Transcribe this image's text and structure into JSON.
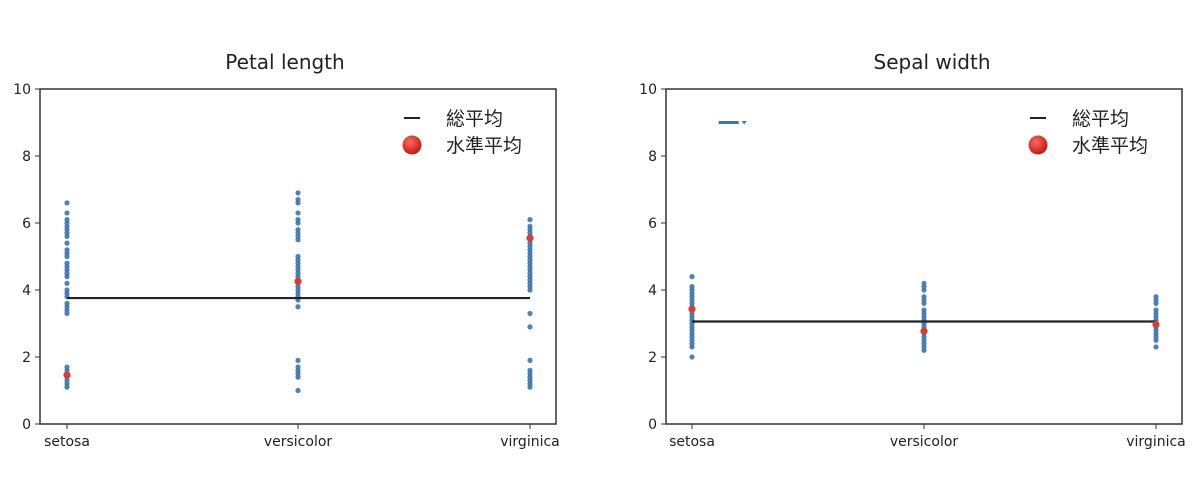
{
  "chart_data": [
    {
      "type": "scatter",
      "title": "Petal length",
      "xlabel": "",
      "ylabel": "",
      "ylim": [
        0,
        10
      ],
      "yticks": [
        0,
        2,
        4,
        6,
        8,
        10
      ],
      "categories": [
        "setosa",
        "versicolor",
        "virginica"
      ],
      "grid": false,
      "legend": {
        "position": "upper right",
        "entries": [
          "総平均",
          "水準平均"
        ]
      },
      "grand_mean": 3.76,
      "level_means": [
        1.46,
        4.26,
        5.55
      ],
      "points": [
        [
          1.1,
          1.2,
          1.3,
          1.4,
          1.5,
          1.6,
          1.7,
          3.3,
          3.4,
          3.5,
          3.6,
          3.8,
          3.9,
          4.0,
          4.2,
          4.4,
          4.5,
          4.6,
          4.7,
          4.8,
          5.0,
          5.1,
          5.2,
          5.4,
          5.6,
          5.7,
          5.8,
          5.9,
          6.0,
          6.1,
          6.3,
          6.6
        ],
        [
          1.0,
          1.4,
          1.5,
          1.6,
          1.7,
          1.9,
          3.5,
          3.7,
          3.8,
          3.9,
          4.0,
          4.1,
          4.2,
          4.3,
          4.4,
          4.5,
          4.6,
          4.7,
          4.8,
          4.9,
          5.0,
          5.5,
          5.6,
          5.7,
          5.8,
          6.0,
          6.1,
          6.3,
          6.6,
          6.7,
          6.9
        ],
        [
          1.1,
          1.2,
          1.3,
          1.4,
          1.5,
          1.6,
          1.9,
          2.9,
          3.3,
          4.0,
          4.1,
          4.2,
          4.3,
          4.4,
          4.5,
          4.6,
          4.7,
          4.8,
          4.9,
          5.0,
          5.1,
          5.2,
          5.3,
          5.4,
          5.5,
          5.6,
          5.7,
          5.8,
          5.9,
          6.1
        ]
      ]
    },
    {
      "type": "scatter",
      "title": "Sepal width",
      "xlabel": "",
      "ylabel": "",
      "ylim": [
        0,
        10
      ],
      "yticks": [
        0,
        2,
        4,
        6,
        8,
        10
      ],
      "categories": [
        "setosa",
        "versicolor",
        "virginica"
      ],
      "grid": false,
      "legend": {
        "position": "upper right",
        "entries": [
          "総平均",
          "水準平均"
        ]
      },
      "grand_mean": 3.06,
      "level_means": [
        3.43,
        2.77,
        2.97
      ],
      "annotation": {
        "type": "stray-marks",
        "x_frac": 0.135,
        "y": 9.0,
        "note": "small blue dashed artifact near top-left"
      },
      "points": [
        [
          2.0,
          2.3,
          2.4,
          2.5,
          2.6,
          2.7,
          2.8,
          2.9,
          3.0,
          3.1,
          3.2,
          3.3,
          3.4,
          3.5,
          3.6,
          3.7,
          3.8,
          3.9,
          4.0,
          4.1,
          4.4
        ],
        [
          2.2,
          2.3,
          2.4,
          2.5,
          2.6,
          2.7,
          2.8,
          2.9,
          3.0,
          3.1,
          3.2,
          3.3,
          3.4,
          3.6,
          3.7,
          3.8,
          4.0,
          4.1,
          4.2
        ],
        [
          2.3,
          2.5,
          2.6,
          2.7,
          2.8,
          2.9,
          3.0,
          3.1,
          3.2,
          3.3,
          3.4,
          3.6,
          3.7,
          3.8
        ]
      ]
    }
  ],
  "colors": {
    "points": "#3a75b0",
    "grand_mean_line": "#222222",
    "level_mean": "#e03a2e",
    "axis": "#333333"
  }
}
